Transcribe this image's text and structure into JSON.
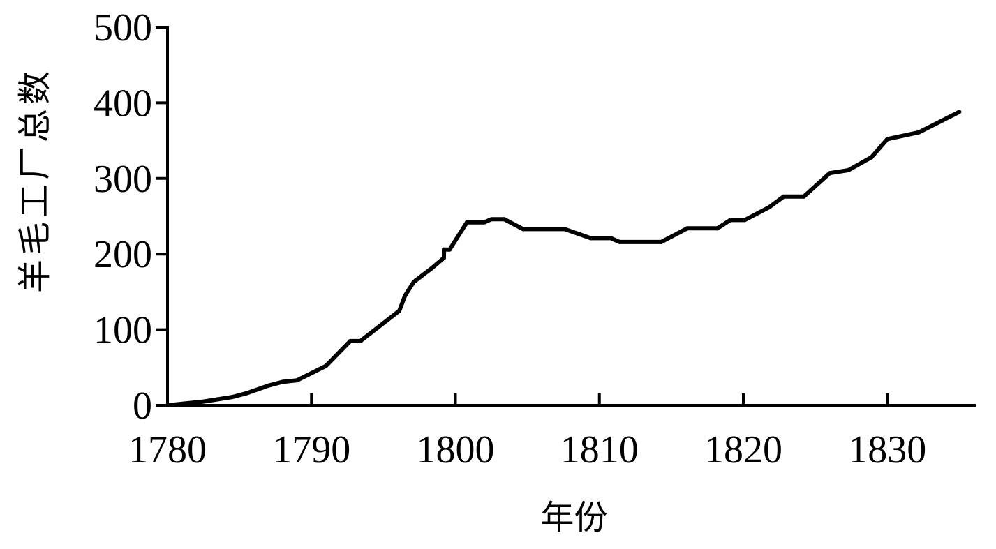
{
  "chart_data": {
    "type": "line",
    "title": "",
    "xlabel": "年份",
    "ylabel": "羊毛工厂总数",
    "xlim": [
      1780,
      1836
    ],
    "ylim": [
      0,
      500
    ],
    "grid": false,
    "x_ticks": [
      1780,
      1790,
      1800,
      1810,
      1820,
      1830
    ],
    "y_ticks": [
      0,
      100,
      200,
      300,
      400,
      500
    ],
    "line_color": "#000000",
    "series": [
      {
        "x": [
          1780,
          1782.5,
          1784.5,
          1785.5,
          1787,
          1788,
          1789,
          1791,
          1792.7,
          1793.4,
          1796.1,
          1796.5,
          1797.1,
          1798.4,
          1799.2,
          1799.2,
          1799.6,
          1800.8,
          1802,
          1802.5,
          1803.4,
          1804.7,
          1807.6,
          1809.4,
          1810.8,
          1811.4,
          1814.3,
          1816.1,
          1818.2,
          1819.1,
          1820.1,
          1821.8,
          1822.8,
          1824.2,
          1826,
          1827.3,
          1828.9,
          1830,
          1832.2,
          1835
        ],
        "y": [
          0,
          5,
          11,
          16,
          26,
          31,
          33,
          52,
          85,
          85,
          125,
          145,
          163,
          182,
          195,
          206,
          206,
          242,
          242,
          246,
          246,
          233,
          233,
          221,
          221,
          216,
          216,
          234,
          234,
          245,
          245,
          262,
          276,
          276,
          307,
          311,
          328,
          352,
          361,
          388
        ]
      }
    ]
  }
}
